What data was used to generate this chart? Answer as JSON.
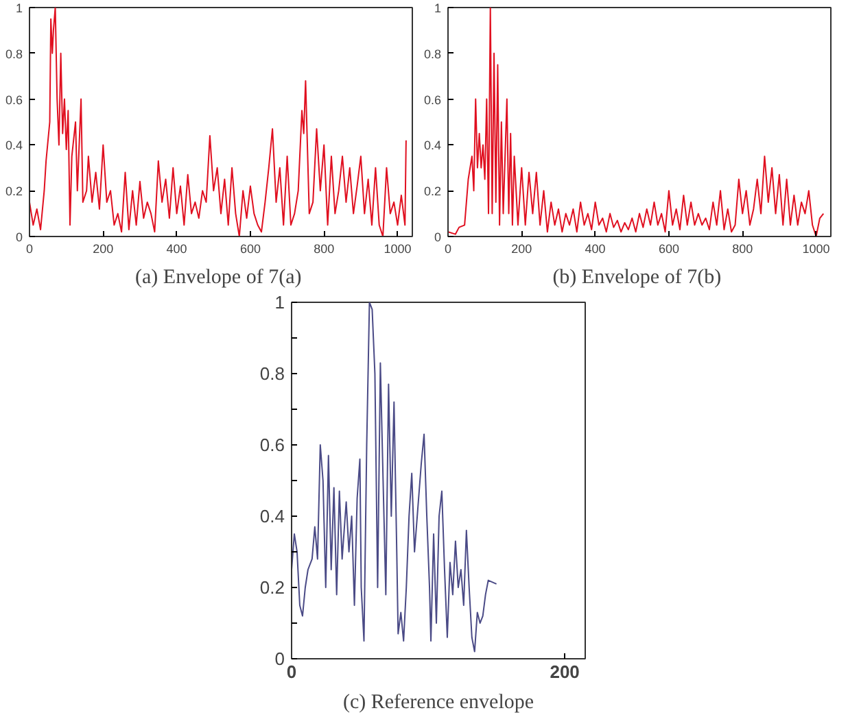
{
  "chart_data": [
    {
      "type": "line",
      "title": "(a)  Envelope of 7(a)",
      "grid": false,
      "xlim": [
        0,
        1040
      ],
      "ylim": [
        0,
        1
      ],
      "xticks": [
        0,
        200,
        400,
        600,
        800,
        1000
      ],
      "yticks": [
        0,
        0.2,
        0.4,
        0.6,
        0.8,
        1
      ],
      "x": [
        0,
        10,
        20,
        30,
        40,
        45,
        55,
        58,
        62,
        65,
        70,
        75,
        80,
        85,
        90,
        95,
        100,
        105,
        110,
        115,
        125,
        130,
        140,
        145,
        155,
        160,
        170,
        180,
        190,
        200,
        210,
        220,
        230,
        240,
        250,
        260,
        270,
        280,
        290,
        300,
        310,
        320,
        330,
        340,
        350,
        360,
        370,
        380,
        390,
        400,
        410,
        420,
        430,
        440,
        450,
        460,
        470,
        480,
        490,
        500,
        510,
        520,
        530,
        540,
        550,
        560,
        570,
        580,
        590,
        600,
        610,
        620,
        630,
        640,
        650,
        660,
        670,
        680,
        690,
        700,
        710,
        720,
        730,
        740,
        745,
        750,
        760,
        770,
        780,
        790,
        800,
        810,
        820,
        830,
        840,
        850,
        860,
        870,
        880,
        890,
        900,
        910,
        920,
        930,
        940,
        950,
        960,
        970,
        980,
        990,
        1000,
        1010,
        1020,
        1023
      ],
      "series": [
        {
          "color": "#e01020",
          "values": [
            0.15,
            0.05,
            0.12,
            0.03,
            0.2,
            0.33,
            0.5,
            0.95,
            0.8,
            0.9,
            1.0,
            0.6,
            0.4,
            0.8,
            0.45,
            0.6,
            0.38,
            0.55,
            0.05,
            0.35,
            0.5,
            0.2,
            0.6,
            0.15,
            0.2,
            0.35,
            0.15,
            0.28,
            0.12,
            0.4,
            0.15,
            0.2,
            0.05,
            0.1,
            0.02,
            0.28,
            0.03,
            0.2,
            0.05,
            0.24,
            0.08,
            0.15,
            0.1,
            0.02,
            0.33,
            0.15,
            0.25,
            0.08,
            0.3,
            0.1,
            0.22,
            0.05,
            0.27,
            0.1,
            0.15,
            0.08,
            0.2,
            0.15,
            0.44,
            0.2,
            0.3,
            0.1,
            0.25,
            0.05,
            0.3,
            0.1,
            0.0,
            0.2,
            0.08,
            0.22,
            0.1,
            0.05,
            0.02,
            0.15,
            0.3,
            0.47,
            0.15,
            0.3,
            0.05,
            0.35,
            0.05,
            0.1,
            0.2,
            0.55,
            0.45,
            0.68,
            0.1,
            0.15,
            0.47,
            0.2,
            0.4,
            0.05,
            0.35,
            0.1,
            0.2,
            0.35,
            0.15,
            0.3,
            0.1,
            0.22,
            0.35,
            0.1,
            0.25,
            0.05,
            0.3,
            0.05,
            0.0,
            0.3,
            0.1,
            0.15,
            0.05,
            0.18,
            0.05,
            0.42
          ]
        }
      ]
    },
    {
      "type": "line",
      "title": "(b)  Envelope of 7(b)",
      "grid": false,
      "xlim": [
        0,
        1040
      ],
      "ylim": [
        0,
        1
      ],
      "xticks": [
        0,
        200,
        400,
        600,
        800,
        1000
      ],
      "yticks": [
        0,
        0.2,
        0.4,
        0.6,
        0.8,
        1
      ],
      "x": [
        0,
        20,
        30,
        45,
        55,
        65,
        70,
        75,
        80,
        85,
        90,
        95,
        100,
        105,
        110,
        115,
        120,
        125,
        130,
        135,
        140,
        145,
        150,
        160,
        165,
        170,
        175,
        180,
        190,
        200,
        210,
        220,
        230,
        240,
        250,
        260,
        270,
        280,
        290,
        300,
        310,
        320,
        330,
        340,
        350,
        360,
        370,
        380,
        390,
        400,
        410,
        420,
        430,
        440,
        450,
        460,
        470,
        480,
        490,
        500,
        510,
        520,
        530,
        540,
        550,
        560,
        570,
        580,
        590,
        600,
        610,
        620,
        630,
        640,
        650,
        660,
        670,
        680,
        690,
        700,
        710,
        720,
        730,
        740,
        750,
        760,
        770,
        780,
        790,
        800,
        810,
        820,
        830,
        840,
        850,
        860,
        870,
        880,
        890,
        900,
        910,
        920,
        930,
        940,
        950,
        960,
        970,
        980,
        990,
        1000,
        1010,
        1020
      ],
      "series": [
        {
          "color": "#e01020",
          "values": [
            0.02,
            0.01,
            0.04,
            0.05,
            0.25,
            0.35,
            0.2,
            0.6,
            0.3,
            0.45,
            0.3,
            0.4,
            0.25,
            0.6,
            0.1,
            1.0,
            0.1,
            0.8,
            0.15,
            0.75,
            0.05,
            0.5,
            0.1,
            0.6,
            0.1,
            0.45,
            0.05,
            0.35,
            0.05,
            0.3,
            0.05,
            0.28,
            0.1,
            0.28,
            0.05,
            0.2,
            0.02,
            0.15,
            0.05,
            0.12,
            0.02,
            0.1,
            0.05,
            0.12,
            0.02,
            0.15,
            0.05,
            0.1,
            0.03,
            0.15,
            0.05,
            0.08,
            0.02,
            0.1,
            0.04,
            0.07,
            0.02,
            0.06,
            0.03,
            0.08,
            0.02,
            0.1,
            0.04,
            0.12,
            0.05,
            0.15,
            0.05,
            0.1,
            0.02,
            0.2,
            0.05,
            0.12,
            0.03,
            0.18,
            0.05,
            0.15,
            0.05,
            0.1,
            0.05,
            0.08,
            0.03,
            0.15,
            0.05,
            0.2,
            0.03,
            0.12,
            0.02,
            0.05,
            0.25,
            0.1,
            0.2,
            0.05,
            0.12,
            0.25,
            0.1,
            0.35,
            0.15,
            0.3,
            0.1,
            0.27,
            0.05,
            0.25,
            0.05,
            0.18,
            0.05,
            0.15,
            0.1,
            0.2,
            0.05,
            0.0,
            0.08,
            0.1
          ]
        }
      ]
    },
    {
      "type": "line",
      "title": "(c) Reference envelope",
      "grid": false,
      "xlim": [
        0,
        215
      ],
      "ylim": [
        0,
        1
      ],
      "xticks": [
        0,
        200
      ],
      "yticks": [
        0,
        {
          "value": 0.1,
          "label": null
        },
        0.2,
        {
          "value": 0.3,
          "label": null
        },
        0.4,
        {
          "value": 0.5,
          "label": null
        },
        0.6,
        {
          "value": 0.7,
          "label": null
        },
        0.8,
        {
          "value": 0.9,
          "label": null
        },
        1
      ],
      "x": [
        0,
        2,
        4,
        6,
        8,
        10,
        12,
        15,
        17,
        19,
        21,
        23,
        25,
        27,
        29,
        31,
        33,
        35,
        37,
        40,
        42,
        44,
        46,
        48,
        50,
        51,
        53,
        55,
        57,
        59,
        61,
        63,
        65,
        67,
        69,
        71,
        73,
        75,
        77,
        78,
        80,
        82,
        84,
        86,
        88,
        90,
        93,
        95,
        97,
        99,
        101,
        102,
        104,
        106,
        108,
        110,
        112,
        114,
        116,
        118,
        120,
        122,
        124,
        126,
        128,
        130,
        132,
        134,
        136,
        138,
        140,
        142,
        144,
        150
      ],
      "series": [
        {
          "color": "#4a4a86",
          "values": [
            0.25,
            0.35,
            0.3,
            0.15,
            0.12,
            0.2,
            0.25,
            0.28,
            0.37,
            0.28,
            0.6,
            0.5,
            0.2,
            0.57,
            0.25,
            0.48,
            0.18,
            0.47,
            0.28,
            0.44,
            0.3,
            0.4,
            0.15,
            0.45,
            0.56,
            0.2,
            0.05,
            0.6,
            1.0,
            0.98,
            0.8,
            0.2,
            0.83,
            0.5,
            0.18,
            0.77,
            0.4,
            0.72,
            0.3,
            0.07,
            0.13,
            0.05,
            0.2,
            0.4,
            0.52,
            0.3,
            0.45,
            0.55,
            0.63,
            0.4,
            0.2,
            0.05,
            0.35,
            0.1,
            0.4,
            0.47,
            0.25,
            0.06,
            0.27,
            0.18,
            0.33,
            0.2,
            0.25,
            0.15,
            0.36,
            0.2,
            0.06,
            0.02,
            0.13,
            0.1,
            0.12,
            0.18,
            0.22,
            0.21
          ]
        }
      ]
    }
  ]
}
